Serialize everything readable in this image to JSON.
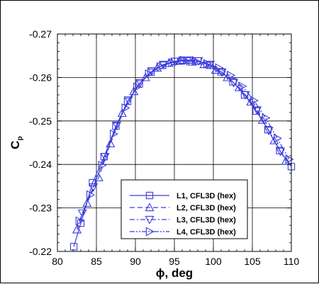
{
  "chart_data": {
    "type": "line",
    "xlabel": "ϕ, deg",
    "ylabel_main": "C",
    "ylabel_sub": "p",
    "xlim": [
      80,
      110
    ],
    "ylim": [
      -0.22,
      -0.27
    ],
    "y_axis_inverted": true,
    "x_ticks": [
      80,
      85,
      90,
      95,
      100,
      105,
      110
    ],
    "x_tick_labels": [
      "80",
      "85",
      "90",
      "95",
      "100",
      "105",
      "110"
    ],
    "y_ticks": [
      -0.22,
      -0.23,
      -0.24,
      -0.25,
      -0.26,
      -0.27
    ],
    "y_tick_labels": [
      "-0.22",
      "-0.23",
      "-0.24",
      "-0.25",
      "-0.26",
      "-0.27"
    ],
    "grid": true,
    "legend_position": "bottom-right",
    "line_color": "#3b3bdc",
    "series": [
      {
        "name": "L1, CFL3D (hex)",
        "dash": "solid",
        "marker": "square",
        "x": [
          82.1,
          83.0,
          84.5,
          86.0,
          87.5,
          89.0,
          90.5,
          92.0,
          93.5,
          95.0,
          96.0,
          97.0,
          98.0,
          99.5,
          101.0,
          102.5,
          104.0,
          105.5,
          107.0,
          108.5,
          110.0
        ],
        "y": [
          -0.2211,
          -0.2265,
          -0.2358,
          -0.2418,
          -0.2488,
          -0.2545,
          -0.2585,
          -0.2612,
          -0.2628,
          -0.2637,
          -0.264,
          -0.264,
          -0.2638,
          -0.2628,
          -0.2613,
          -0.259,
          -0.256,
          -0.2523,
          -0.248,
          -0.2432,
          -0.2395
        ]
      },
      {
        "name": "L2, CFL3D (hex)",
        "dash": "dashed",
        "marker": "triangle-up",
        "x": [
          82.5,
          83.8,
          85.3,
          86.8,
          88.3,
          89.8,
          91.3,
          92.8,
          94.3,
          95.8,
          97.3,
          98.8,
          100.3,
          101.8,
          103.3,
          104.8,
          106.3,
          107.8,
          109.3
        ],
        "y": [
          -0.225,
          -0.2311,
          -0.237,
          -0.2448,
          -0.2518,
          -0.2568,
          -0.26,
          -0.2622,
          -0.2633,
          -0.2638,
          -0.2636,
          -0.263,
          -0.2617,
          -0.26,
          -0.2577,
          -0.2544,
          -0.2502,
          -0.2455,
          -0.2408
        ]
      },
      {
        "name": "L3, CFL3D (hex)",
        "dash": "dashdot",
        "marker": "triangle-down",
        "x": [
          83.2,
          84.6,
          86.1,
          87.6,
          89.1,
          90.6,
          92.1,
          93.6,
          95.1,
          96.6,
          98.1,
          99.6,
          101.1,
          102.6,
          104.1,
          105.6,
          107.1,
          108.6
        ],
        "y": [
          -0.2288,
          -0.2348,
          -0.2418,
          -0.249,
          -0.2548,
          -0.2588,
          -0.2615,
          -0.263,
          -0.2637,
          -0.2638,
          -0.2638,
          -0.263,
          -0.2612,
          -0.2588,
          -0.256,
          -0.2525,
          -0.2478,
          -0.243
        ]
      },
      {
        "name": "L4, CFL3D (hex)",
        "dash": "dashdotdot",
        "marker": "triangle-right",
        "x": [
          82.8,
          84.2,
          85.7,
          87.2,
          88.7,
          90.2,
          91.7,
          93.2,
          94.7,
          96.2,
          97.7,
          99.2,
          100.7,
          102.2,
          103.7,
          105.2,
          106.7,
          108.2,
          109.7
        ],
        "y": [
          -0.227,
          -0.233,
          -0.2398,
          -0.247,
          -0.253,
          -0.2578,
          -0.2608,
          -0.2625,
          -0.2634,
          -0.2639,
          -0.2638,
          -0.2632,
          -0.2622,
          -0.2605,
          -0.258,
          -0.2547,
          -0.2507,
          -0.246,
          -0.2412
        ]
      }
    ]
  }
}
